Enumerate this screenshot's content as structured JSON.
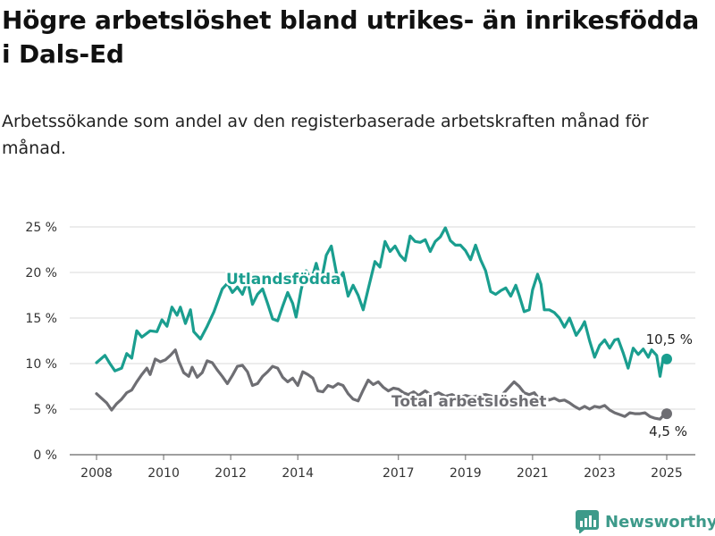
{
  "title": "Högre arbetslöshet bland utrikes- än inrikesfödda i Dals-Ed",
  "subtitle": "Arbetssökande som andel av den registerbaserade arbetskraften månad för månad.",
  "brand": "Newsworthy",
  "colors": {
    "foreign": "#1a9e8f",
    "total": "#6e6e73",
    "grid": "#d9d9d9"
  },
  "chart_data": {
    "type": "line",
    "xlabel": "",
    "ylabel": "",
    "ylim": [
      0,
      25
    ],
    "xlim": [
      2008.0,
      2025.0
    ],
    "yticks": [
      0,
      5,
      10,
      15,
      20,
      25
    ],
    "ytick_labels": [
      "0 %",
      "5 %",
      "10 %",
      "15 %",
      "20 %",
      "25 %"
    ],
    "xticks": [
      2008,
      2010,
      2012,
      2014,
      2017,
      2019,
      2021,
      2023,
      2025
    ],
    "xtick_labels": [
      "2008",
      "2010",
      "2012",
      "2014",
      "2017",
      "2019",
      "2021",
      "2023",
      "2025"
    ],
    "grid": true,
    "series": [
      {
        "name": "Utlandsfödda",
        "color": "#1a9e8f",
        "end_label": "10,5 %",
        "points": [
          [
            2008.0,
            10.1
          ],
          [
            2008.25,
            10.9
          ],
          [
            2008.4,
            10.0
          ],
          [
            2008.55,
            9.2
          ],
          [
            2008.75,
            9.5
          ],
          [
            2008.9,
            11.1
          ],
          [
            2009.05,
            10.6
          ],
          [
            2009.2,
            13.6
          ],
          [
            2009.35,
            12.9
          ],
          [
            2009.6,
            13.6
          ],
          [
            2009.8,
            13.5
          ],
          [
            2009.95,
            14.8
          ],
          [
            2010.1,
            14.1
          ],
          [
            2010.25,
            16.2
          ],
          [
            2010.4,
            15.3
          ],
          [
            2010.5,
            16.2
          ],
          [
            2010.65,
            14.4
          ],
          [
            2010.8,
            15.9
          ],
          [
            2010.9,
            13.5
          ],
          [
            2011.1,
            12.7
          ],
          [
            2011.3,
            14.1
          ],
          [
            2011.5,
            15.7
          ],
          [
            2011.75,
            18.2
          ],
          [
            2011.9,
            18.8
          ],
          [
            2012.05,
            17.8
          ],
          [
            2012.2,
            18.4
          ],
          [
            2012.35,
            17.6
          ],
          [
            2012.5,
            19.1
          ],
          [
            2012.65,
            16.5
          ],
          [
            2012.8,
            17.6
          ],
          [
            2012.95,
            18.2
          ],
          [
            2013.1,
            16.6
          ],
          [
            2013.25,
            14.9
          ],
          [
            2013.4,
            14.7
          ],
          [
            2013.55,
            16.3
          ],
          [
            2013.7,
            17.8
          ],
          [
            2013.85,
            16.6
          ],
          [
            2013.95,
            15.1
          ],
          [
            2014.1,
            18.1
          ],
          [
            2014.25,
            20.2
          ],
          [
            2014.4,
            19.1
          ],
          [
            2014.55,
            21.0
          ],
          [
            2014.7,
            19.0
          ],
          [
            2014.85,
            21.9
          ],
          [
            2015.0,
            22.9
          ],
          [
            2015.2,
            19.0
          ],
          [
            2015.35,
            20.0
          ],
          [
            2015.5,
            17.4
          ],
          [
            2015.65,
            18.6
          ],
          [
            2015.8,
            17.5
          ],
          [
            2015.95,
            15.9
          ],
          [
            2016.1,
            18.2
          ],
          [
            2016.3,
            21.2
          ],
          [
            2016.45,
            20.6
          ],
          [
            2016.6,
            23.4
          ],
          [
            2016.75,
            22.3
          ],
          [
            2016.9,
            22.9
          ],
          [
            2017.05,
            21.9
          ],
          [
            2017.2,
            21.3
          ],
          [
            2017.35,
            24.0
          ],
          [
            2017.5,
            23.4
          ],
          [
            2017.65,
            23.3
          ],
          [
            2017.8,
            23.6
          ],
          [
            2017.95,
            22.3
          ],
          [
            2018.1,
            23.4
          ],
          [
            2018.25,
            23.9
          ],
          [
            2018.4,
            24.9
          ],
          [
            2018.55,
            23.5
          ],
          [
            2018.7,
            23.0
          ],
          [
            2018.85,
            23.0
          ],
          [
            2019.0,
            22.4
          ],
          [
            2019.15,
            21.4
          ],
          [
            2019.3,
            23.0
          ],
          [
            2019.45,
            21.4
          ],
          [
            2019.6,
            20.2
          ],
          [
            2019.75,
            17.9
          ],
          [
            2019.9,
            17.6
          ],
          [
            2020.05,
            18.0
          ],
          [
            2020.2,
            18.3
          ],
          [
            2020.35,
            17.4
          ],
          [
            2020.5,
            18.6
          ],
          [
            2020.6,
            17.5
          ],
          [
            2020.75,
            15.7
          ],
          [
            2020.9,
            15.9
          ],
          [
            2021.0,
            18.1
          ],
          [
            2021.15,
            19.8
          ],
          [
            2021.25,
            18.7
          ],
          [
            2021.35,
            15.9
          ],
          [
            2021.5,
            15.9
          ],
          [
            2021.65,
            15.6
          ],
          [
            2021.8,
            15.0
          ],
          [
            2021.95,
            14.0
          ],
          [
            2022.1,
            15.0
          ],
          [
            2022.3,
            13.1
          ],
          [
            2022.45,
            13.9
          ],
          [
            2022.55,
            14.6
          ],
          [
            2022.7,
            12.5
          ],
          [
            2022.85,
            10.7
          ],
          [
            2023.0,
            12.0
          ],
          [
            2023.15,
            12.6
          ],
          [
            2023.3,
            11.7
          ],
          [
            2023.45,
            12.6
          ],
          [
            2023.55,
            12.7
          ],
          [
            2023.7,
            11.2
          ],
          [
            2023.85,
            9.5
          ],
          [
            2024.0,
            11.7
          ],
          [
            2024.15,
            11.0
          ],
          [
            2024.3,
            11.6
          ],
          [
            2024.45,
            10.7
          ],
          [
            2024.55,
            11.5
          ],
          [
            2024.7,
            10.9
          ],
          [
            2024.8,
            8.6
          ],
          [
            2024.9,
            10.7
          ],
          [
            2025.0,
            10.5
          ]
        ]
      },
      {
        "name": "Total arbetslöshet",
        "color": "#6e6e73",
        "end_label": "4,5 %",
        "points": [
          [
            2008.0,
            6.7
          ],
          [
            2008.15,
            6.2
          ],
          [
            2008.3,
            5.7
          ],
          [
            2008.45,
            4.9
          ],
          [
            2008.6,
            5.6
          ],
          [
            2008.75,
            6.1
          ],
          [
            2008.9,
            6.8
          ],
          [
            2009.05,
            7.1
          ],
          [
            2009.2,
            8.0
          ],
          [
            2009.35,
            8.8
          ],
          [
            2009.5,
            9.5
          ],
          [
            2009.6,
            8.8
          ],
          [
            2009.75,
            10.5
          ],
          [
            2009.9,
            10.2
          ],
          [
            2010.05,
            10.4
          ],
          [
            2010.2,
            10.9
          ],
          [
            2010.35,
            11.5
          ],
          [
            2010.45,
            10.3
          ],
          [
            2010.6,
            9.0
          ],
          [
            2010.75,
            8.6
          ],
          [
            2010.85,
            9.6
          ],
          [
            2011.0,
            8.5
          ],
          [
            2011.15,
            9.0
          ],
          [
            2011.3,
            10.3
          ],
          [
            2011.45,
            10.1
          ],
          [
            2011.6,
            9.3
          ],
          [
            2011.75,
            8.6
          ],
          [
            2011.9,
            7.8
          ],
          [
            2012.05,
            8.7
          ],
          [
            2012.2,
            9.7
          ],
          [
            2012.35,
            9.8
          ],
          [
            2012.5,
            9.1
          ],
          [
            2012.65,
            7.6
          ],
          [
            2012.8,
            7.8
          ],
          [
            2012.95,
            8.6
          ],
          [
            2013.1,
            9.1
          ],
          [
            2013.25,
            9.7
          ],
          [
            2013.4,
            9.5
          ],
          [
            2013.55,
            8.5
          ],
          [
            2013.7,
            8.0
          ],
          [
            2013.85,
            8.4
          ],
          [
            2014.0,
            7.6
          ],
          [
            2014.15,
            9.1
          ],
          [
            2014.3,
            8.8
          ],
          [
            2014.45,
            8.4
          ],
          [
            2014.6,
            7.0
          ],
          [
            2014.75,
            6.9
          ],
          [
            2014.9,
            7.6
          ],
          [
            2015.05,
            7.4
          ],
          [
            2015.2,
            7.8
          ],
          [
            2015.35,
            7.6
          ],
          [
            2015.5,
            6.7
          ],
          [
            2015.65,
            6.1
          ],
          [
            2015.8,
            5.9
          ],
          [
            2015.95,
            7.1
          ],
          [
            2016.1,
            8.2
          ],
          [
            2016.25,
            7.7
          ],
          [
            2016.4,
            8.0
          ],
          [
            2016.55,
            7.4
          ],
          [
            2016.7,
            7.0
          ],
          [
            2016.85,
            7.3
          ],
          [
            2017.0,
            7.2
          ],
          [
            2017.15,
            6.8
          ],
          [
            2017.3,
            6.6
          ],
          [
            2017.45,
            6.9
          ],
          [
            2017.6,
            6.5
          ],
          [
            2017.8,
            7.0
          ],
          [
            2018.0,
            6.5
          ],
          [
            2018.2,
            6.8
          ],
          [
            2018.4,
            6.4
          ],
          [
            2018.6,
            6.6
          ],
          [
            2018.8,
            6.2
          ],
          [
            2019.0,
            6.5
          ],
          [
            2019.2,
            6.3
          ],
          [
            2019.4,
            6.5
          ],
          [
            2019.6,
            6.6
          ],
          [
            2019.8,
            6.4
          ],
          [
            2020.0,
            6.3
          ],
          [
            2020.15,
            6.8
          ],
          [
            2020.3,
            7.4
          ],
          [
            2020.45,
            8.0
          ],
          [
            2020.6,
            7.5
          ],
          [
            2020.75,
            6.8
          ],
          [
            2020.9,
            6.6
          ],
          [
            2021.05,
            6.8
          ],
          [
            2021.2,
            6.1
          ],
          [
            2021.35,
            6.4
          ],
          [
            2021.5,
            6.0
          ],
          [
            2021.65,
            6.2
          ],
          [
            2021.8,
            5.9
          ],
          [
            2021.95,
            6.0
          ],
          [
            2022.1,
            5.7
          ],
          [
            2022.25,
            5.3
          ],
          [
            2022.4,
            5.0
          ],
          [
            2022.55,
            5.3
          ],
          [
            2022.7,
            5.0
          ],
          [
            2022.85,
            5.3
          ],
          [
            2023.0,
            5.2
          ],
          [
            2023.15,
            5.4
          ],
          [
            2023.3,
            4.9
          ],
          [
            2023.45,
            4.6
          ],
          [
            2023.6,
            4.4
          ],
          [
            2023.75,
            4.2
          ],
          [
            2023.9,
            4.6
          ],
          [
            2024.05,
            4.5
          ],
          [
            2024.2,
            4.5
          ],
          [
            2024.35,
            4.6
          ],
          [
            2024.5,
            4.2
          ],
          [
            2024.65,
            4.0
          ],
          [
            2024.8,
            3.9
          ],
          [
            2024.9,
            4.3
          ],
          [
            2025.0,
            4.5
          ]
        ]
      }
    ]
  }
}
